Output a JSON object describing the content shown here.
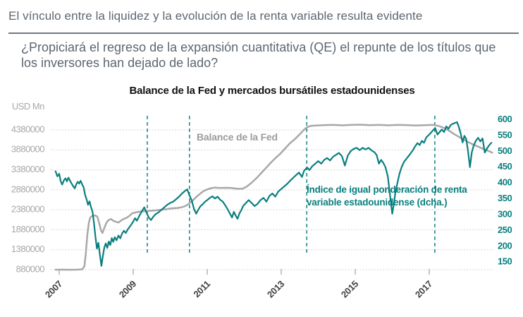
{
  "page": {
    "title": "El vínculo entre la liquidez y la evolución de la renta variable resulta evidente",
    "subtitle": "¿Propiciará el regreso de la expansión cuantitativa (QE) el repunte de los títulos que los inversores han dejado de lado?"
  },
  "chart": {
    "title": "Balance de la Fed y mercados bursátiles estadounidenses",
    "left_axis": {
      "unit": "USD Mn",
      "ticks": [
        4380000,
        3880000,
        3380000,
        2880000,
        2380000,
        1880000,
        1380000,
        880000
      ]
    },
    "right_axis": {
      "ticks": [
        600,
        550,
        500,
        450,
        400,
        350,
        300,
        250,
        200,
        150
      ]
    },
    "x_axis": {
      "ticks": [
        2007,
        2009,
        2011,
        2013,
        2015,
        2017
      ]
    },
    "annotations": {
      "fed_label": "Balance de la Fed",
      "equity_label": "Índice de igual ponderación de renta\nvariable estadounidense (dcha.)"
    },
    "colors": {
      "teal": "#0a7f7f",
      "gray_line": "#a8a8a8",
      "left_tick_text": "#a7a7a7",
      "right_tick_text": "#0a7f7f",
      "year_tick_text": "#3f3f3f",
      "grid": "#c9c9c9",
      "tick_mark": "#8f8f8f"
    }
  },
  "chart_data": {
    "type": "line",
    "title": "Balance de la Fed y mercados bursátiles estadounidenses",
    "xlabel": "",
    "ylabel_left": "USD Mn",
    "xlim": [
      2006.85,
      2018.75
    ],
    "ylim_left": [
      880000,
      4804000
    ],
    "ylim_right": [
      123,
      621
    ],
    "grid": "dotted-horizontal",
    "event_lines_x": [
      2009.38,
      2010.52,
      2013.69,
      2017.15
    ],
    "series": [
      {
        "name": "Balance de la Fed",
        "axis": "left",
        "color": "#a8a8a8",
        "x": [
          2006.9,
          2007.1,
          2007.3,
          2007.5,
          2007.62,
          2007.68,
          2007.72,
          2007.76,
          2007.8,
          2007.84,
          2007.9,
          2007.97,
          2008.03,
          2008.08,
          2008.13,
          2008.17,
          2008.22,
          2008.28,
          2008.33,
          2008.4,
          2008.47,
          2008.53,
          2008.6,
          2008.67,
          2008.74,
          2008.82,
          2008.9,
          2008.97,
          2009.05,
          2009.15,
          2009.3,
          2009.45,
          2009.6,
          2009.75,
          2009.9,
          2010.0,
          2010.1,
          2010.2,
          2010.3,
          2010.4,
          2010.5,
          2010.58,
          2010.66,
          2010.74,
          2010.82,
          2010.9,
          2011.0,
          2011.1,
          2011.2,
          2011.35,
          2011.5,
          2011.65,
          2011.8,
          2011.95,
          2012.05,
          2012.15,
          2012.25,
          2012.35,
          2012.47,
          2012.6,
          2012.72,
          2012.85,
          2012.98,
          2013.1,
          2013.23,
          2013.37,
          2013.5,
          2013.6,
          2013.7,
          2013.8,
          2013.95,
          2014.15,
          2014.4,
          2014.65,
          2014.9,
          2015.15,
          2015.4,
          2015.65,
          2015.9,
          2016.15,
          2016.4,
          2016.65,
          2016.9,
          2017.1,
          2017.25,
          2017.4,
          2017.55,
          2017.7,
          2017.85,
          2018.0,
          2018.15,
          2018.3,
          2018.45,
          2018.58,
          2018.7
        ],
        "values": [
          880000,
          882000,
          878000,
          882000,
          888000,
          960000,
          1300000,
          1750000,
          2050000,
          2190000,
          2230000,
          2240000,
          2210000,
          2050000,
          1860000,
          1800000,
          1930000,
          2060000,
          2120000,
          2150000,
          2100000,
          2080000,
          2060000,
          2110000,
          2150000,
          2180000,
          2230000,
          2290000,
          2310000,
          2330000,
          2345000,
          2355000,
          2365000,
          2380000,
          2395000,
          2410000,
          2420000,
          2425000,
          2440000,
          2470000,
          2530000,
          2590000,
          2660000,
          2730000,
          2790000,
          2850000,
          2890000,
          2920000,
          2935000,
          2925000,
          2930000,
          2925000,
          2910000,
          2905000,
          2950000,
          3020000,
          3100000,
          3190000,
          3310000,
          3440000,
          3560000,
          3680000,
          3790000,
          3910000,
          4040000,
          4150000,
          4270000,
          4370000,
          4450000,
          4480000,
          4490000,
          4500000,
          4505000,
          4495000,
          4505000,
          4510000,
          4500000,
          4505000,
          4495000,
          4505000,
          4500000,
          4490000,
          4500000,
          4505000,
          4480000,
          4430000,
          4350000,
          4260000,
          4180000,
          4100000,
          4030000,
          3970000,
          3910000,
          3860000,
          3810000
        ]
      },
      {
        "name": "Índice de igual ponderación de renta variable estadounidense (dcha.)",
        "axis": "right",
        "color": "#0a7f7f",
        "x": [
          2006.9,
          2006.95,
          2007.0,
          2007.04,
          2007.08,
          2007.13,
          2007.17,
          2007.21,
          2007.25,
          2007.29,
          2007.33,
          2007.38,
          2007.42,
          2007.46,
          2007.5,
          2007.54,
          2007.58,
          2007.62,
          2007.66,
          2007.7,
          2007.74,
          2007.78,
          2007.82,
          2007.86,
          2007.9,
          2007.94,
          2007.98,
          2008.02,
          2008.06,
          2008.1,
          2008.14,
          2008.18,
          2008.22,
          2008.26,
          2008.3,
          2008.34,
          2008.38,
          2008.42,
          2008.46,
          2008.5,
          2008.55,
          2008.6,
          2008.65,
          2008.7,
          2008.75,
          2008.8,
          2008.85,
          2008.9,
          2008.95,
          2009.0,
          2009.05,
          2009.1,
          2009.17,
          2009.24,
          2009.3,
          2009.36,
          2009.42,
          2009.48,
          2009.54,
          2009.6,
          2009.68,
          2009.76,
          2009.84,
          2009.92,
          2010.0,
          2010.08,
          2010.16,
          2010.24,
          2010.32,
          2010.4,
          2010.46,
          2010.52,
          2010.58,
          2010.64,
          2010.7,
          2010.76,
          2010.82,
          2010.88,
          2010.94,
          2011.0,
          2011.07,
          2011.14,
          2011.21,
          2011.28,
          2011.35,
          2011.42,
          2011.49,
          2011.55,
          2011.61,
          2011.67,
          2011.72,
          2011.77,
          2011.82,
          2011.87,
          2011.92,
          2011.97,
          2012.04,
          2012.12,
          2012.2,
          2012.28,
          2012.36,
          2012.44,
          2012.52,
          2012.6,
          2012.68,
          2012.76,
          2012.84,
          2012.92,
          2013.0,
          2013.08,
          2013.16,
          2013.24,
          2013.32,
          2013.4,
          2013.48,
          2013.56,
          2013.62,
          2013.7,
          2013.76,
          2013.84,
          2013.92,
          2014.0,
          2014.08,
          2014.16,
          2014.24,
          2014.32,
          2014.4,
          2014.48,
          2014.56,
          2014.64,
          2014.72,
          2014.8,
          2014.88,
          2014.96,
          2015.04,
          2015.12,
          2015.2,
          2015.28,
          2015.36,
          2015.44,
          2015.52,
          2015.58,
          2015.64,
          2015.7,
          2015.76,
          2015.82,
          2015.88,
          2015.92,
          2015.96,
          2016.0,
          2016.04,
          2016.08,
          2016.14,
          2016.2,
          2016.26,
          2016.32,
          2016.4,
          2016.48,
          2016.56,
          2016.62,
          2016.68,
          2016.74,
          2016.8,
          2016.86,
          2016.92,
          2016.98,
          2017.04,
          2017.1,
          2017.16,
          2017.22,
          2017.28,
          2017.34,
          2017.4,
          2017.46,
          2017.52,
          2017.58,
          2017.64,
          2017.7,
          2017.75,
          2017.8,
          2017.85,
          2017.9,
          2017.95,
          2018.0,
          2018.05,
          2018.1,
          2018.15,
          2018.2,
          2018.26,
          2018.32,
          2018.38,
          2018.44,
          2018.5,
          2018.56,
          2018.62,
          2018.68
        ],
        "values": [
          437,
          421,
          429,
          406,
          395,
          409,
          415,
          405,
          417,
          408,
          399,
          389,
          383,
          396,
          404,
          398,
          407,
          396,
          386,
          362,
          348,
          331,
          342,
          324,
          309,
          272,
          228,
          193,
          211,
          174,
          138,
          170,
          197,
          209,
          195,
          215,
          204,
          226,
          214,
          229,
          219,
          234,
          225,
          241,
          249,
          242,
          253,
          261,
          269,
          278,
          289,
          281,
          297,
          312,
          323,
          306,
          291,
          283,
          293,
          301,
          307,
          315,
          323,
          331,
          337,
          341,
          349,
          357,
          367,
          375,
          380,
          361,
          346,
          319,
          303,
          316,
          327,
          333,
          341,
          346,
          353,
          358,
          351,
          357,
          347,
          341,
          329,
          317,
          304,
          291,
          309,
          297,
          287,
          304,
          314,
          327,
          336,
          346,
          337,
          327,
          334,
          346,
          353,
          341,
          359,
          367,
          357,
          373,
          381,
          389,
          397,
          407,
          416,
          425,
          433,
          419,
          439,
          449,
          441,
          453,
          461,
          469,
          461,
          473,
          479,
          471,
          483,
          489,
          495,
          485,
          455,
          487,
          501,
          508,
          511,
          504,
          511,
          506,
          511,
          503,
          497,
          488,
          461,
          473,
          463,
          449,
          421,
          382,
          341,
          303,
          331,
          366,
          401,
          431,
          452,
          467,
          479,
          491,
          504,
          516,
          526,
          520,
          533,
          527,
          544,
          551,
          558,
          566,
          574,
          553,
          561,
          569,
          561,
          579,
          571,
          583,
          587,
          590,
          592,
          577,
          556,
          528,
          549,
          539,
          499,
          450,
          497,
          518,
          533,
          543,
          531,
          541,
          496,
          509,
          519,
          527
        ]
      }
    ]
  }
}
